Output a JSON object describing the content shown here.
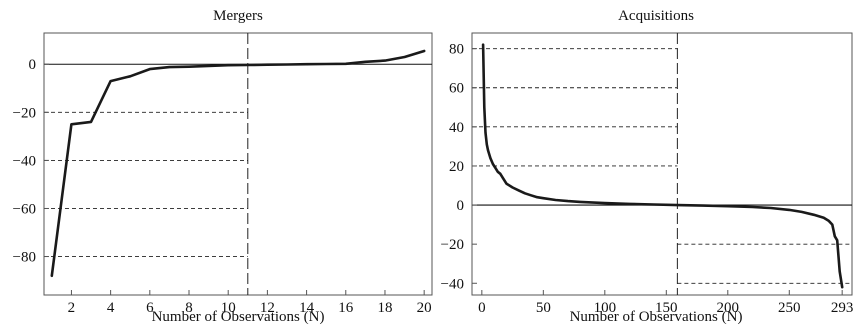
{
  "chart_data": [
    {
      "type": "line",
      "title": "Mergers",
      "xlabel": "Number of Observations (N)",
      "ylabel": "",
      "xlim": [
        0.6,
        20.4
      ],
      "ylim": [
        -96,
        13
      ],
      "xticks": [
        2,
        4,
        6,
        8,
        10,
        12,
        14,
        16,
        18,
        20
      ],
      "yticks": [
        0,
        -20,
        -40,
        -60,
        -80
      ],
      "zero_line": 0,
      "vline": 11,
      "hguides": [
        -20,
        -40,
        -60,
        -80
      ],
      "hguide_xrange": [
        0.6,
        11
      ],
      "series": [
        {
          "x": [
            1,
            2,
            3,
            4,
            5,
            6,
            7,
            8,
            9,
            10,
            11,
            12,
            13,
            14,
            15,
            16,
            17,
            18,
            19,
            20
          ],
          "values": [
            -88,
            -25,
            -24,
            -7,
            -5,
            -2,
            -1.2,
            -1,
            -0.7,
            -0.4,
            -0.3,
            -0.2,
            -0.1,
            0,
            0.1,
            0.2,
            1,
            1.5,
            3,
            5.5
          ]
        }
      ]
    },
    {
      "type": "line",
      "title": "Acquisitions",
      "xlabel": "Number of Observations (N)",
      "ylabel": "",
      "xlim": [
        -8,
        301
      ],
      "ylim": [
        -46,
        88
      ],
      "xticks": [
        0,
        50,
        100,
        150,
        200,
        250,
        293
      ],
      "yticks": [
        80,
        60,
        40,
        20,
        0,
        -20,
        -40
      ],
      "zero_line": 0,
      "vline": 159,
      "hguides": [
        80,
        60,
        40,
        20,
        -20,
        -40
      ],
      "series": [
        {
          "x": [
            1,
            2,
            3,
            4,
            5,
            7,
            9,
            11,
            13,
            15,
            17,
            20,
            25,
            30,
            35,
            40,
            45,
            50,
            60,
            70,
            80,
            100,
            120,
            140,
            159,
            180,
            200,
            220,
            235,
            250,
            260,
            270,
            278,
            282,
            285,
            287,
            289,
            291,
            293
          ],
          "values": [
            82,
            50,
            37,
            31,
            28,
            24,
            21,
            19,
            17,
            16,
            14,
            11,
            9,
            7.5,
            6,
            5,
            4,
            3.5,
            2.6,
            2,
            1.6,
            1,
            0.6,
            0.3,
            0,
            -0.3,
            -0.6,
            -1,
            -1.5,
            -2.5,
            -3.5,
            -5,
            -6.5,
            -8,
            -10,
            -16,
            -18,
            -34,
            -42
          ]
        }
      ]
    }
  ]
}
